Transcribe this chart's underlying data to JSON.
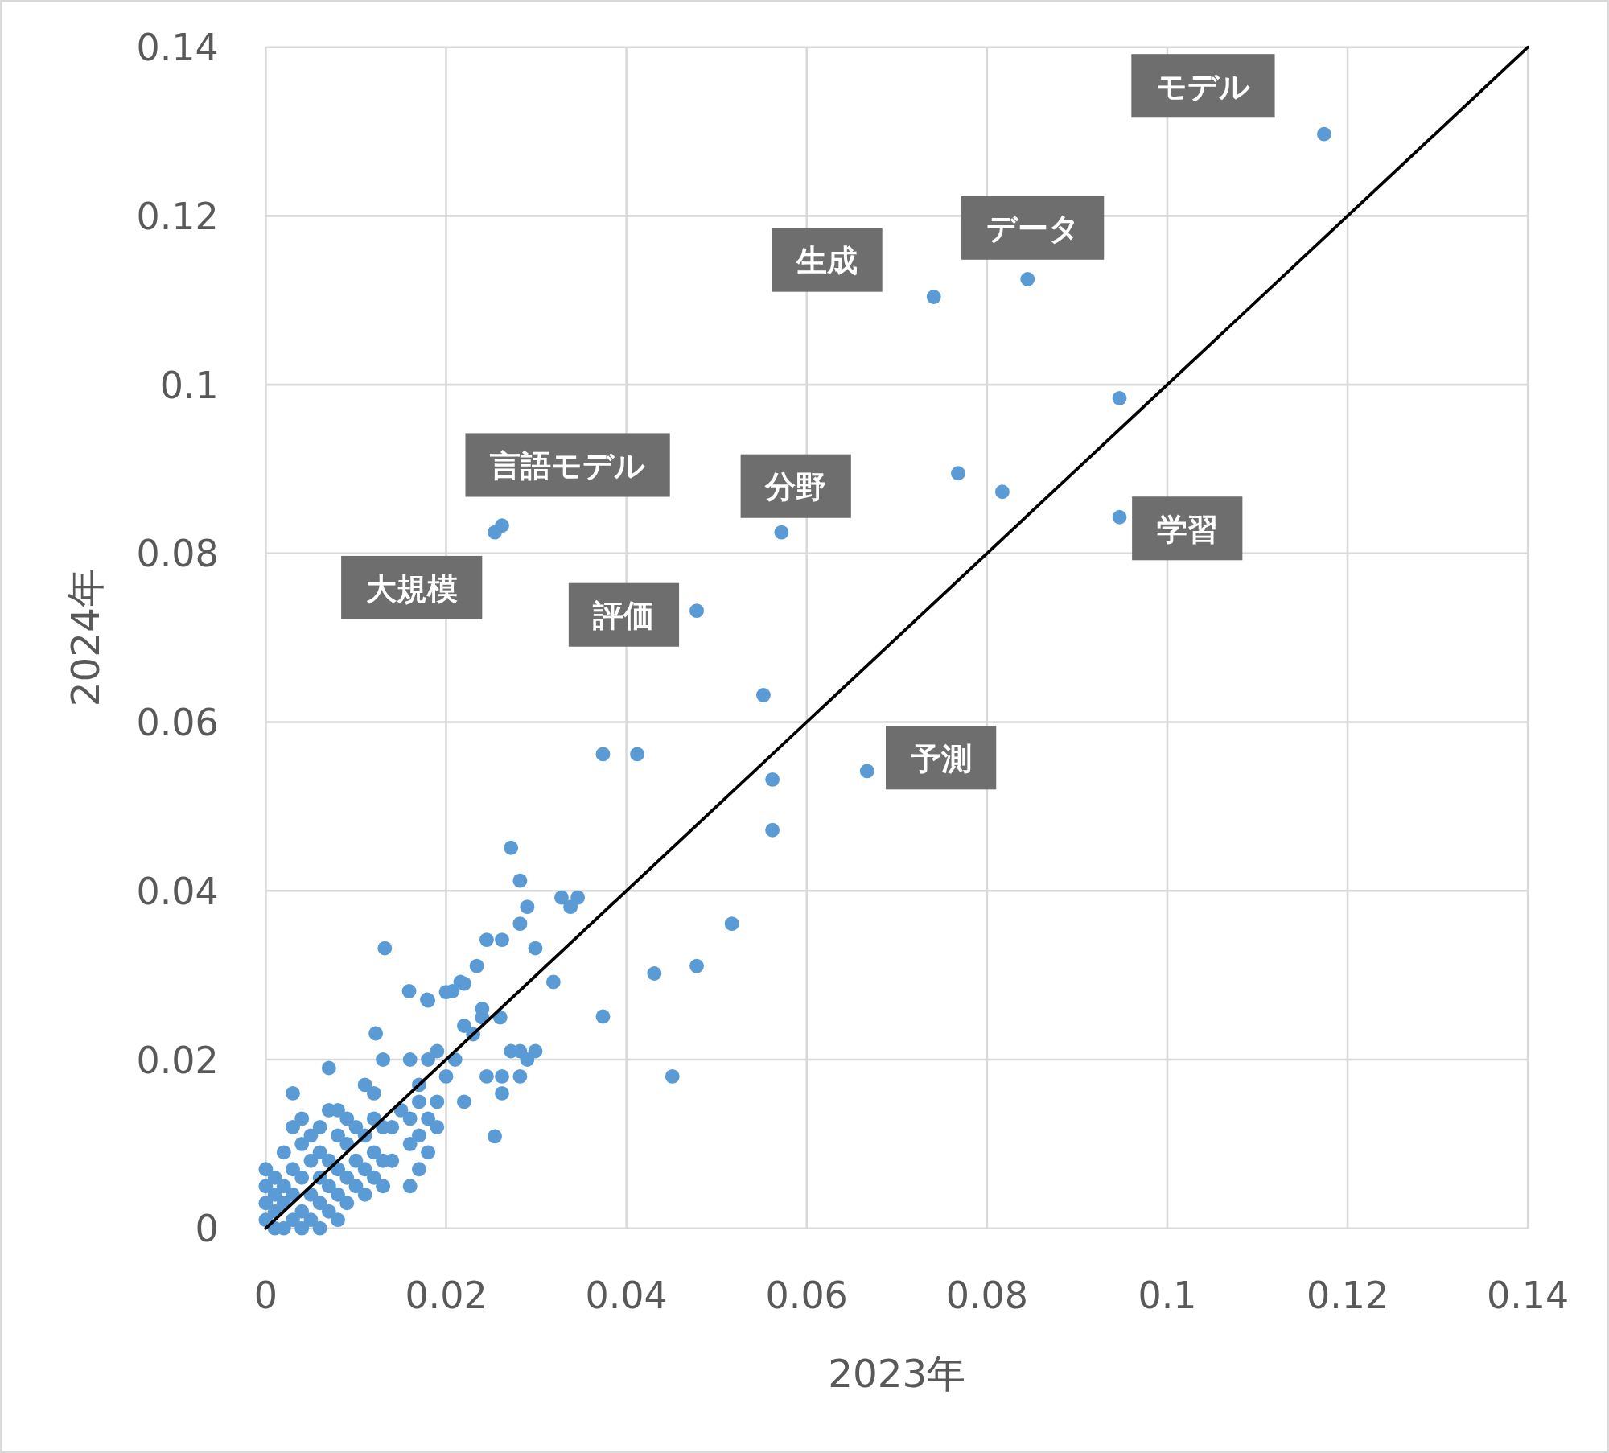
{
  "chart_data": {
    "type": "scatter",
    "xlabel": "2023年",
    "ylabel": "2024年",
    "xlim": [
      0,
      0.14
    ],
    "ylim": [
      0,
      0.14
    ],
    "xticks": [
      0,
      0.02,
      0.04,
      0.06,
      0.08,
      0.1,
      0.12,
      0.14
    ],
    "yticks": [
      0,
      0.02,
      0.04,
      0.06,
      0.08,
      0.1,
      0.12,
      0.14
    ],
    "grid": true,
    "series": [
      {
        "marker": "circle",
        "color": "#5b9bd5",
        "x": [
          0.1174,
          0.0845,
          0.0741,
          0.0947,
          0.0768,
          0.0817,
          0.0947,
          0.0572,
          0.0262,
          0.0254,
          0.0478,
          0.0552,
          0.0374,
          0.0412,
          0.0667,
          0.0562,
          0.0562,
          0.0272,
          0.0282,
          0.029,
          0.0328,
          0.0346,
          0.0338,
          0.0282,
          0.0517,
          0.0132,
          0.0245,
          0.0262,
          0.0299,
          0.0234,
          0.0431,
          0.0478,
          0.0319,
          0.0159,
          0.0179,
          0.0207,
          0.0216,
          0.0374,
          0.0122,
          0.0245,
          0.0262,
          0.0282,
          0.0451,
          0.0262,
          0.0254,
          0.0272,
          0.0282,
          0.029,
          0.0299,
          0,
          0,
          0,
          0,
          0.001,
          0.001,
          0.001,
          0.001,
          0.002,
          0.002,
          0.002,
          0.002,
          0.003,
          0.003,
          0.003,
          0.003,
          0.003,
          0.004,
          0.004,
          0.004,
          0.004,
          0.004,
          0.005,
          0.005,
          0.005,
          0.005,
          0.006,
          0.006,
          0.006,
          0.006,
          0.006,
          0.007,
          0.007,
          0.007,
          0.007,
          0.007,
          0.008,
          0.008,
          0.008,
          0.008,
          0.008,
          0.009,
          0.009,
          0.009,
          0.009,
          0.01,
          0.01,
          0.01,
          0.011,
          0.011,
          0.011,
          0.011,
          0.012,
          0.012,
          0.012,
          0.012,
          0.013,
          0.013,
          0.013,
          0.013,
          0.014,
          0.014,
          0.015,
          0.016,
          0.016,
          0.016,
          0.016,
          0.017,
          0.017,
          0.017,
          0.017,
          0.018,
          0.018,
          0.018,
          0.018,
          0.019,
          0.019,
          0.019,
          0.02,
          0.02,
          0.021,
          0.022,
          0.022,
          0.022,
          0.023,
          0.024,
          0.024,
          0.026
        ],
        "values": [
          0.1297,
          0.1125,
          0.1104,
          0.0984,
          0.0895,
          0.0873,
          0.0843,
          0.0825,
          0.0833,
          0.0825,
          0.0732,
          0.0632,
          0.0562,
          0.0562,
          0.0542,
          0.0532,
          0.0472,
          0.0451,
          0.0412,
          0.0381,
          0.0392,
          0.0392,
          0.0381,
          0.0361,
          0.0361,
          0.0332,
          0.0342,
          0.0342,
          0.0332,
          0.0311,
          0.0302,
          0.0311,
          0.0292,
          0.0281,
          0.0271,
          0.0281,
          0.0292,
          0.0251,
          0.0231,
          0.018,
          0.018,
          0.018,
          0.018,
          0.016,
          0.0109,
          0.021,
          0.021,
          0.02,
          0.021,
          0.001,
          0.003,
          0.005,
          0.007,
          0,
          0.002,
          0.004,
          0.006,
          0,
          0.003,
          0.005,
          0.009,
          0.001,
          0.004,
          0.007,
          0.012,
          0.016,
          0,
          0.002,
          0.006,
          0.01,
          0.013,
          0.001,
          0.004,
          0.008,
          0.011,
          0,
          0.003,
          0.006,
          0.009,
          0.012,
          0.002,
          0.005,
          0.008,
          0.014,
          0.019,
          0.001,
          0.004,
          0.007,
          0.011,
          0.014,
          0.003,
          0.006,
          0.01,
          0.013,
          0.005,
          0.008,
          0.012,
          0.004,
          0.007,
          0.011,
          0.017,
          0.006,
          0.009,
          0.013,
          0.016,
          0.005,
          0.008,
          0.012,
          0.02,
          0.008,
          0.012,
          0.014,
          0.005,
          0.01,
          0.013,
          0.02,
          0.007,
          0.011,
          0.015,
          0.017,
          0.009,
          0.013,
          0.02,
          0.027,
          0.012,
          0.015,
          0.021,
          0.018,
          0.028,
          0.02,
          0.015,
          0.024,
          0.029,
          0.023,
          0.025,
          0.026,
          0.025
        ]
      },
      {
        "type": "line",
        "marker": "none",
        "color": "#000000",
        "x": [
          0,
          0.14
        ],
        "values": [
          0,
          0.14
        ]
      }
    ],
    "annotations": [
      {
        "text": "モデル",
        "x": 0.1174,
        "y": 0.1297
      },
      {
        "text": "データ",
        "x": 0.0845,
        "y": 0.1125
      },
      {
        "text": "生成",
        "x": 0.0741,
        "y": 0.1104
      },
      {
        "text": "言語モデル",
        "x": 0.0262,
        "y": 0.0833
      },
      {
        "text": "分野",
        "x": 0.0572,
        "y": 0.0825
      },
      {
        "text": "大規模",
        "x": 0.0254,
        "y": 0.0825
      },
      {
        "text": "評価",
        "x": 0.0478,
        "y": 0.0732
      },
      {
        "text": "学習",
        "x": 0.0947,
        "y": 0.0843
      },
      {
        "text": "予測",
        "x": 0.0667,
        "y": 0.0542
      }
    ]
  }
}
